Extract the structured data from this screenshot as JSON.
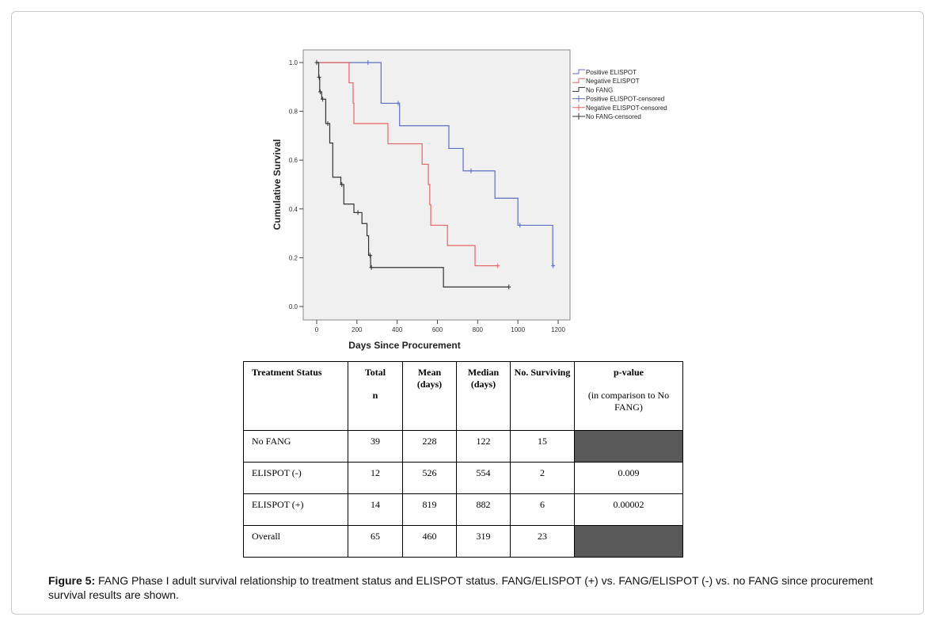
{
  "chart_data": {
    "type": "line",
    "subtype": "kaplan-meier step",
    "xlabel": "Days Since Procurement",
    "ylabel": "Cumulative Survival",
    "xlim": [
      0,
      1200
    ],
    "ylim": [
      0,
      1.0
    ],
    "xticks": [
      "0",
      "200",
      "400",
      "600",
      "800",
      "1000",
      "1200"
    ],
    "yticks": [
      "0.0",
      "0.2",
      "0.4",
      "0.6",
      "0.8",
      "1.0"
    ],
    "legend_position": "top-right",
    "legend": [
      "Positive ELISPOT",
      "Negative ELISPOT",
      "No FANG",
      "Positive ELISPOT-censored",
      "Negative ELISPOT-censored",
      "No FANG-censored"
    ],
    "series": [
      {
        "name": "Positive ELISPOT",
        "color": "#5b6fbf",
        "steps": [
          [
            0,
            1.0
          ],
          [
            320,
            0.833
          ],
          [
            412,
            0.741
          ],
          [
            657,
            0.648
          ],
          [
            728,
            0.556
          ],
          [
            886,
            0.444
          ],
          [
            1000,
            0.333
          ],
          [
            1173,
            0.167
          ]
        ],
        "end": 1175,
        "censored": [
          [
            255,
            1.0
          ],
          [
            405,
            0.833
          ],
          [
            767,
            0.556
          ],
          [
            1010,
            0.333
          ],
          [
            1175,
            0.167
          ]
        ]
      },
      {
        "name": "Negative ELISPOT",
        "color": "#e86464",
        "steps": [
          [
            0,
            1.0
          ],
          [
            161,
            0.917
          ],
          [
            181,
            0.833
          ],
          [
            185,
            0.75
          ],
          [
            354,
            0.667
          ],
          [
            524,
            0.583
          ],
          [
            555,
            0.5
          ],
          [
            562,
            0.417
          ],
          [
            567,
            0.333
          ],
          [
            650,
            0.25
          ],
          [
            787,
            0.167
          ]
        ],
        "end": 900,
        "censored": [
          [
            900,
            0.167
          ]
        ]
      },
      {
        "name": "No FANG",
        "color": "#333333",
        "steps": [
          [
            0,
            1.0
          ],
          [
            10,
            0.94
          ],
          [
            15,
            0.88
          ],
          [
            25,
            0.85
          ],
          [
            45,
            0.75
          ],
          [
            65,
            0.67
          ],
          [
            80,
            0.53
          ],
          [
            120,
            0.5
          ],
          [
            135,
            0.42
          ],
          [
            185,
            0.385
          ],
          [
            225,
            0.34
          ],
          [
            250,
            0.29
          ],
          [
            258,
            0.21
          ],
          [
            268,
            0.16
          ],
          [
            630,
            0.08
          ]
        ],
        "end": 955,
        "censored": [
          [
            0,
            1.0
          ],
          [
            12,
            0.94
          ],
          [
            18,
            0.88
          ],
          [
            30,
            0.85
          ],
          [
            55,
            0.75
          ],
          [
            125,
            0.5
          ],
          [
            205,
            0.385
          ],
          [
            265,
            0.21
          ],
          [
            272,
            0.16
          ],
          [
            955,
            0.08
          ]
        ]
      }
    ]
  },
  "table": {
    "headers": [
      {
        "main": "Treatment Status",
        "sub": ""
      },
      {
        "main": "Total",
        "sub": "n"
      },
      {
        "main": "Mean (days)",
        "sub": ""
      },
      {
        "main": "Median (days)",
        "sub": ""
      },
      {
        "main": "No. Surviving",
        "sub": ""
      },
      {
        "main": "p-value",
        "sub": "(in comparison to No FANG)"
      }
    ],
    "rows": [
      [
        "No FANG",
        "39",
        "228",
        "122",
        "15",
        ""
      ],
      [
        "ELISPOT (-)",
        "12",
        "526",
        "554",
        "2",
        "0.009"
      ],
      [
        "ELISPOT (+)",
        "14",
        "819",
        "882",
        "6",
        "0.00002"
      ],
      [
        "Overall",
        "65",
        "460",
        "319",
        "23",
        ""
      ]
    ]
  },
  "caption": {
    "label": "Figure 5:",
    "text": " FANG Phase I adult survival relationship to treatment status and ELISPOT status.  FANG/ELISPOT (+) vs. FANG/ELISPOT (-) vs. no FANG since procurement survival results are shown."
  }
}
